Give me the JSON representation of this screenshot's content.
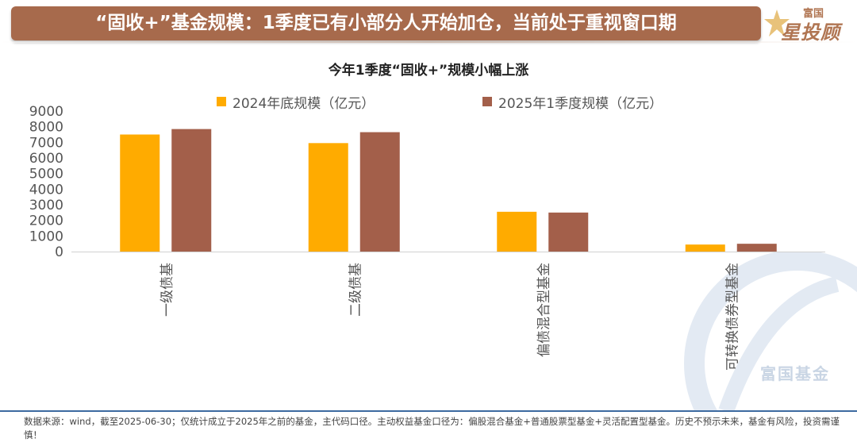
{
  "header": {
    "title": "“固收+”基金规模：1季度已有小部分人开始加仓，当前处于重视窗口期",
    "logo_top": "富国",
    "logo_main": "星投顾"
  },
  "watermark": {
    "text": "富国基金"
  },
  "footer": {
    "note": "数据来源：wind，截至2025-06-30；仅统计成立于2025年之前的基金，主代码口径。主动权益基金口径为：偏股混合基金+普通股票型基金+灵活配置型基金。历史不预示未来，基金有风险，投资需谨慎！"
  },
  "chart_data": {
    "type": "bar",
    "title": "今年1季度“固收+”规模小幅上涨",
    "categories": [
      "一级债基",
      "二级债基",
      "偏债混合型基金",
      "可转换债券型基金"
    ],
    "series": [
      {
        "name": "2024年底规模（亿元）",
        "color": "#ffab00",
        "values": [
          7500,
          6950,
          2550,
          450
        ]
      },
      {
        "name": "2025年1季度规模（亿元）",
        "color": "#a35f4a",
        "values": [
          7850,
          7650,
          2500,
          500
        ]
      }
    ],
    "ylim": [
      0,
      9000
    ],
    "yticks": [
      "0",
      "1000",
      "2000",
      "3000",
      "4000",
      "5000",
      "6000",
      "7000",
      "8000",
      "9000"
    ],
    "legend_position": "top",
    "grid": false
  }
}
